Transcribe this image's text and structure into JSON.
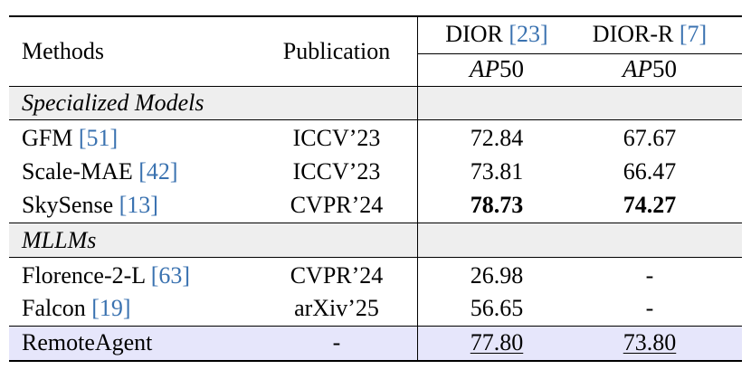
{
  "colors": {
    "section_band": "#eeeeee",
    "highlight_band": "#e6e6fb",
    "citation_link": "#3a72b0"
  },
  "header": {
    "methods": "Methods",
    "publication": "Publication",
    "dior_name": "DIOR",
    "dior_ref": "[23]",
    "diorr_name": "DIOR-R",
    "diorr_ref": "[7]",
    "metric_letters": "AP",
    "metric_number": "50"
  },
  "sections": {
    "specialized": "Specialized Models",
    "mllms": "MLLMs"
  },
  "rows": [
    {
      "name": "GFM",
      "ref": "[51]",
      "pub": "ICCV’23",
      "dior": "72.84",
      "diorr": "67.67"
    },
    {
      "name": "Scale-MAE",
      "ref": "[42]",
      "pub": "ICCV’23",
      "dior": "73.81",
      "diorr": "66.47"
    },
    {
      "name": "SkySense",
      "ref": "[13]",
      "pub": "CVPR’24",
      "dior": "78.73",
      "diorr": "74.27"
    },
    {
      "name": "Florence-2-L",
      "ref": "[63]",
      "pub": "CVPR’24",
      "dior": "26.98",
      "diorr": "-"
    },
    {
      "name": "Falcon",
      "ref": "[19]",
      "pub": "arXiv’25",
      "dior": "56.65",
      "diorr": "-"
    }
  ],
  "ours": {
    "name": "RemoteAgent",
    "pub": "-",
    "dior": "77.80",
    "diorr": "73.80"
  }
}
